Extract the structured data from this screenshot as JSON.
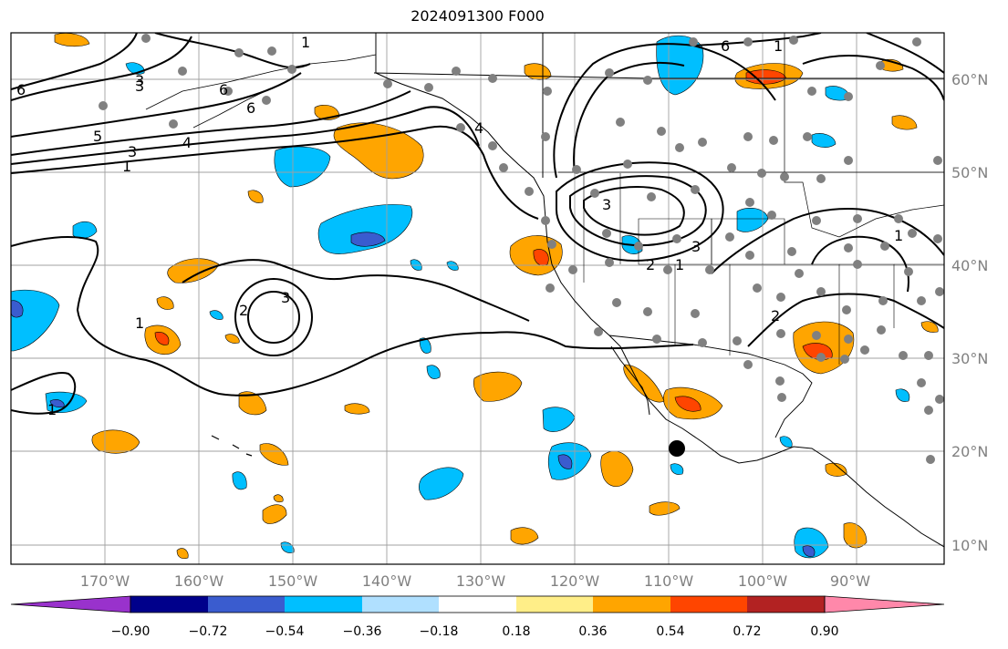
{
  "title": "2024091300 F000",
  "map": {
    "lon_labels": [
      "170°W",
      "160°W",
      "150°W",
      "140°W",
      "130°W",
      "120°W",
      "110°W",
      "100°W",
      "90°W"
    ],
    "lat_labels": [
      "60°N",
      "50°N",
      "40°N",
      "30°N",
      "20°N",
      "10°N"
    ],
    "grid_color": "#a0a0a0",
    "tick_label_color": "#808080"
  },
  "contour_labels": [
    "6",
    "3",
    "6",
    "5",
    "4",
    "3",
    "1",
    "6",
    "4",
    "1",
    "6",
    "1",
    "3",
    "3",
    "1",
    "1",
    "3",
    "2",
    "2",
    "1",
    "1",
    "2",
    "3"
  ],
  "colorbar": {
    "colors": [
      "#9932cc",
      "#00008b",
      "#3a5ccf",
      "#00bfff",
      "#b0e0ff",
      "#ffffff",
      "#ffee88",
      "#ffa500",
      "#ff4500",
      "#b22222",
      "#ff88aa"
    ],
    "tick_labels": [
      "−0.90",
      "−0.72",
      "−0.54",
      "−0.36",
      "−0.18",
      "0.18",
      "0.36",
      "0.54",
      "0.72",
      "0.90"
    ]
  }
}
